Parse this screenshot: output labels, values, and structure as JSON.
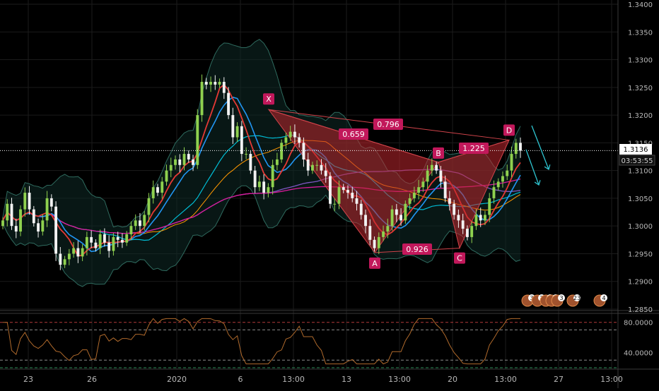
{
  "colors": {
    "background": "#000000",
    "grid": "#1b1b1b",
    "up": "#8fd14f",
    "down": "#f2f2f2",
    "pattern_fill": "#c0262d",
    "pattern_label_bg": "#c2185b",
    "price_label_bg": "#ffffff",
    "rsi": "#b06a2c",
    "projection_arrow": "#2ec4d0"
  },
  "chart_data": [
    {
      "type": "candlestick",
      "instrument_hint": "price chart with harmonic pattern",
      "x_tick_labels": [
        "23",
        "26",
        "2020",
        "6",
        "13:00",
        "13",
        "13:00",
        "20",
        "13:00",
        "27",
        "13:00"
      ],
      "y_axis": {
        "range": [
          1.285,
          1.34
        ],
        "tick_labels": [
          "1.3400",
          "1.3350",
          "1.3300",
          "1.3250",
          "1.3200",
          "1.3150",
          "1.3100",
          "1.3050",
          "1.3000",
          "1.2950",
          "1.2900",
          "1.2850"
        ],
        "ticks": [
          1.34,
          1.335,
          1.33,
          1.325,
          1.32,
          1.315,
          1.31,
          1.305,
          1.3,
          1.295,
          1.29,
          1.285
        ]
      },
      "last_price": {
        "value": 1.3136,
        "label": "1.3136",
        "countdown": "03:53:55"
      },
      "closes": [
        1.301,
        1.304,
        1.3,
        1.299,
        1.303,
        1.306,
        1.303,
        1.3005,
        1.299,
        1.301,
        1.305,
        1.3035,
        1.295,
        1.293,
        1.294,
        1.295,
        1.296,
        1.2945,
        1.296,
        1.298,
        1.297,
        1.296,
        1.2985,
        1.297,
        1.2955,
        1.298,
        1.2975,
        1.297,
        1.2985,
        1.3,
        1.301,
        1.3,
        1.302,
        1.305,
        1.307,
        1.306,
        1.308,
        1.31,
        1.311,
        1.312,
        1.311,
        1.313,
        1.312,
        1.311,
        1.32,
        1.326,
        1.3255,
        1.326,
        1.3255,
        1.326,
        1.324,
        1.32,
        1.316,
        1.318,
        1.313,
        1.313,
        1.31,
        1.307,
        1.308,
        1.306,
        1.307,
        1.311,
        1.312,
        1.315,
        1.316,
        1.317,
        1.316,
        1.315,
        1.312,
        1.31,
        1.311,
        1.311,
        1.31,
        1.309,
        1.304,
        1.304,
        1.307,
        1.3065,
        1.306,
        1.305,
        1.304,
        1.302,
        1.3,
        1.2975,
        1.296,
        1.298,
        1.299,
        1.3,
        1.303,
        1.302,
        1.301,
        1.304,
        1.305,
        1.306,
        1.307,
        1.308,
        1.31,
        1.311,
        1.31,
        1.308,
        1.305,
        1.304,
        1.302,
        1.301,
        1.2995,
        1.298,
        1.3,
        1.302,
        1.301,
        1.302,
        1.305,
        1.307,
        1.308,
        1.309,
        1.31,
        1.313,
        1.315,
        1.3136
      ],
      "indicators": [
        "Bollinger Bands",
        "moving averages (red, blue, orange, cyan, purple, magenta)",
        "RSI"
      ],
      "rsi": {
        "range": [
          20,
          90
        ],
        "tick_labels": [
          "80.0000",
          "40.0000"
        ],
        "ticks": [
          80,
          40
        ],
        "levels": [
          80,
          70,
          30,
          20
        ]
      },
      "harmonic_pattern": {
        "points": [
          {
            "label": "X",
            "price": 1.321
          },
          {
            "label": "A",
            "price": 1.2952
          },
          {
            "label": "B",
            "price": 1.3115
          },
          {
            "label": "C",
            "price": 1.296
          },
          {
            "label": "D",
            "price": 1.3155
          }
        ],
        "ratios": [
          "0.659",
          "0.796",
          "1.225",
          "0.926"
        ]
      },
      "event_markers": [
        "3",
        "2",
        "3",
        "3",
        "3",
        "23",
        "4"
      ]
    }
  ]
}
